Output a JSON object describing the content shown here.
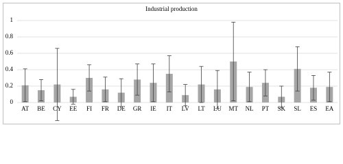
{
  "chart_data": {
    "type": "bar",
    "title": "Industrial production",
    "categories": [
      "AT",
      "BE",
      "CY",
      "EE",
      "FI",
      "FR",
      "DE",
      "GR",
      "IE",
      "IT",
      "LV",
      "LT",
      "LU",
      "MT",
      "NL",
      "PT",
      "SK",
      "SL",
      "ES",
      "EA"
    ],
    "values": [
      0.21,
      0.15,
      0.22,
      0.07,
      0.3,
      0.16,
      0.12,
      0.28,
      0.24,
      0.35,
      0.09,
      0.22,
      0.16,
      0.5,
      0.19,
      0.24,
      0.07,
      0.41,
      0.18,
      0.19
    ],
    "errors": [
      0.2,
      0.13,
      0.44,
      0.09,
      0.16,
      0.15,
      0.17,
      0.19,
      0.23,
      0.22,
      0.13,
      0.22,
      0.23,
      0.48,
      0.18,
      0.16,
      0.13,
      0.27,
      0.15,
      0.18
    ],
    "color": "#a6a6a6",
    "ylim": [
      0,
      1
    ],
    "yticks": [
      0,
      0.2,
      0.4,
      0.6,
      0.8,
      1
    ],
    "grid": true
  }
}
